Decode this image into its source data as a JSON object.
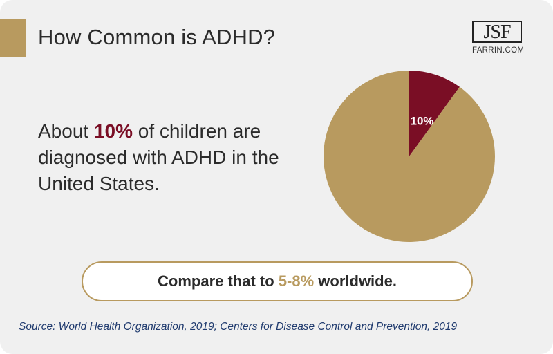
{
  "header": {
    "title": "How Common is ADHD?"
  },
  "logo": {
    "monogram": "JSF",
    "url": "FARRIN.COM"
  },
  "description": {
    "prefix": "About ",
    "highlight": "10%",
    "suffix": " of children are diagnosed with ADHD in the United States."
  },
  "comparison": {
    "prefix": "Compare that to ",
    "highlight": "5-8%",
    "suffix": " worldwide."
  },
  "source": "Source: World Health Organization, 2019; Centers for Disease Control and Prevention, 2019",
  "colors": {
    "background": "#f0f0f0",
    "gold": "#b89a5f",
    "maroon": "#7a0e25",
    "source_text": "#1f3a6e"
  },
  "chart_data": {
    "type": "pie",
    "slices": [
      {
        "value": 10,
        "label": "10%",
        "color": "#7a0e25"
      },
      {
        "value": 90,
        "label": "",
        "color": "#b89a5f"
      }
    ]
  }
}
